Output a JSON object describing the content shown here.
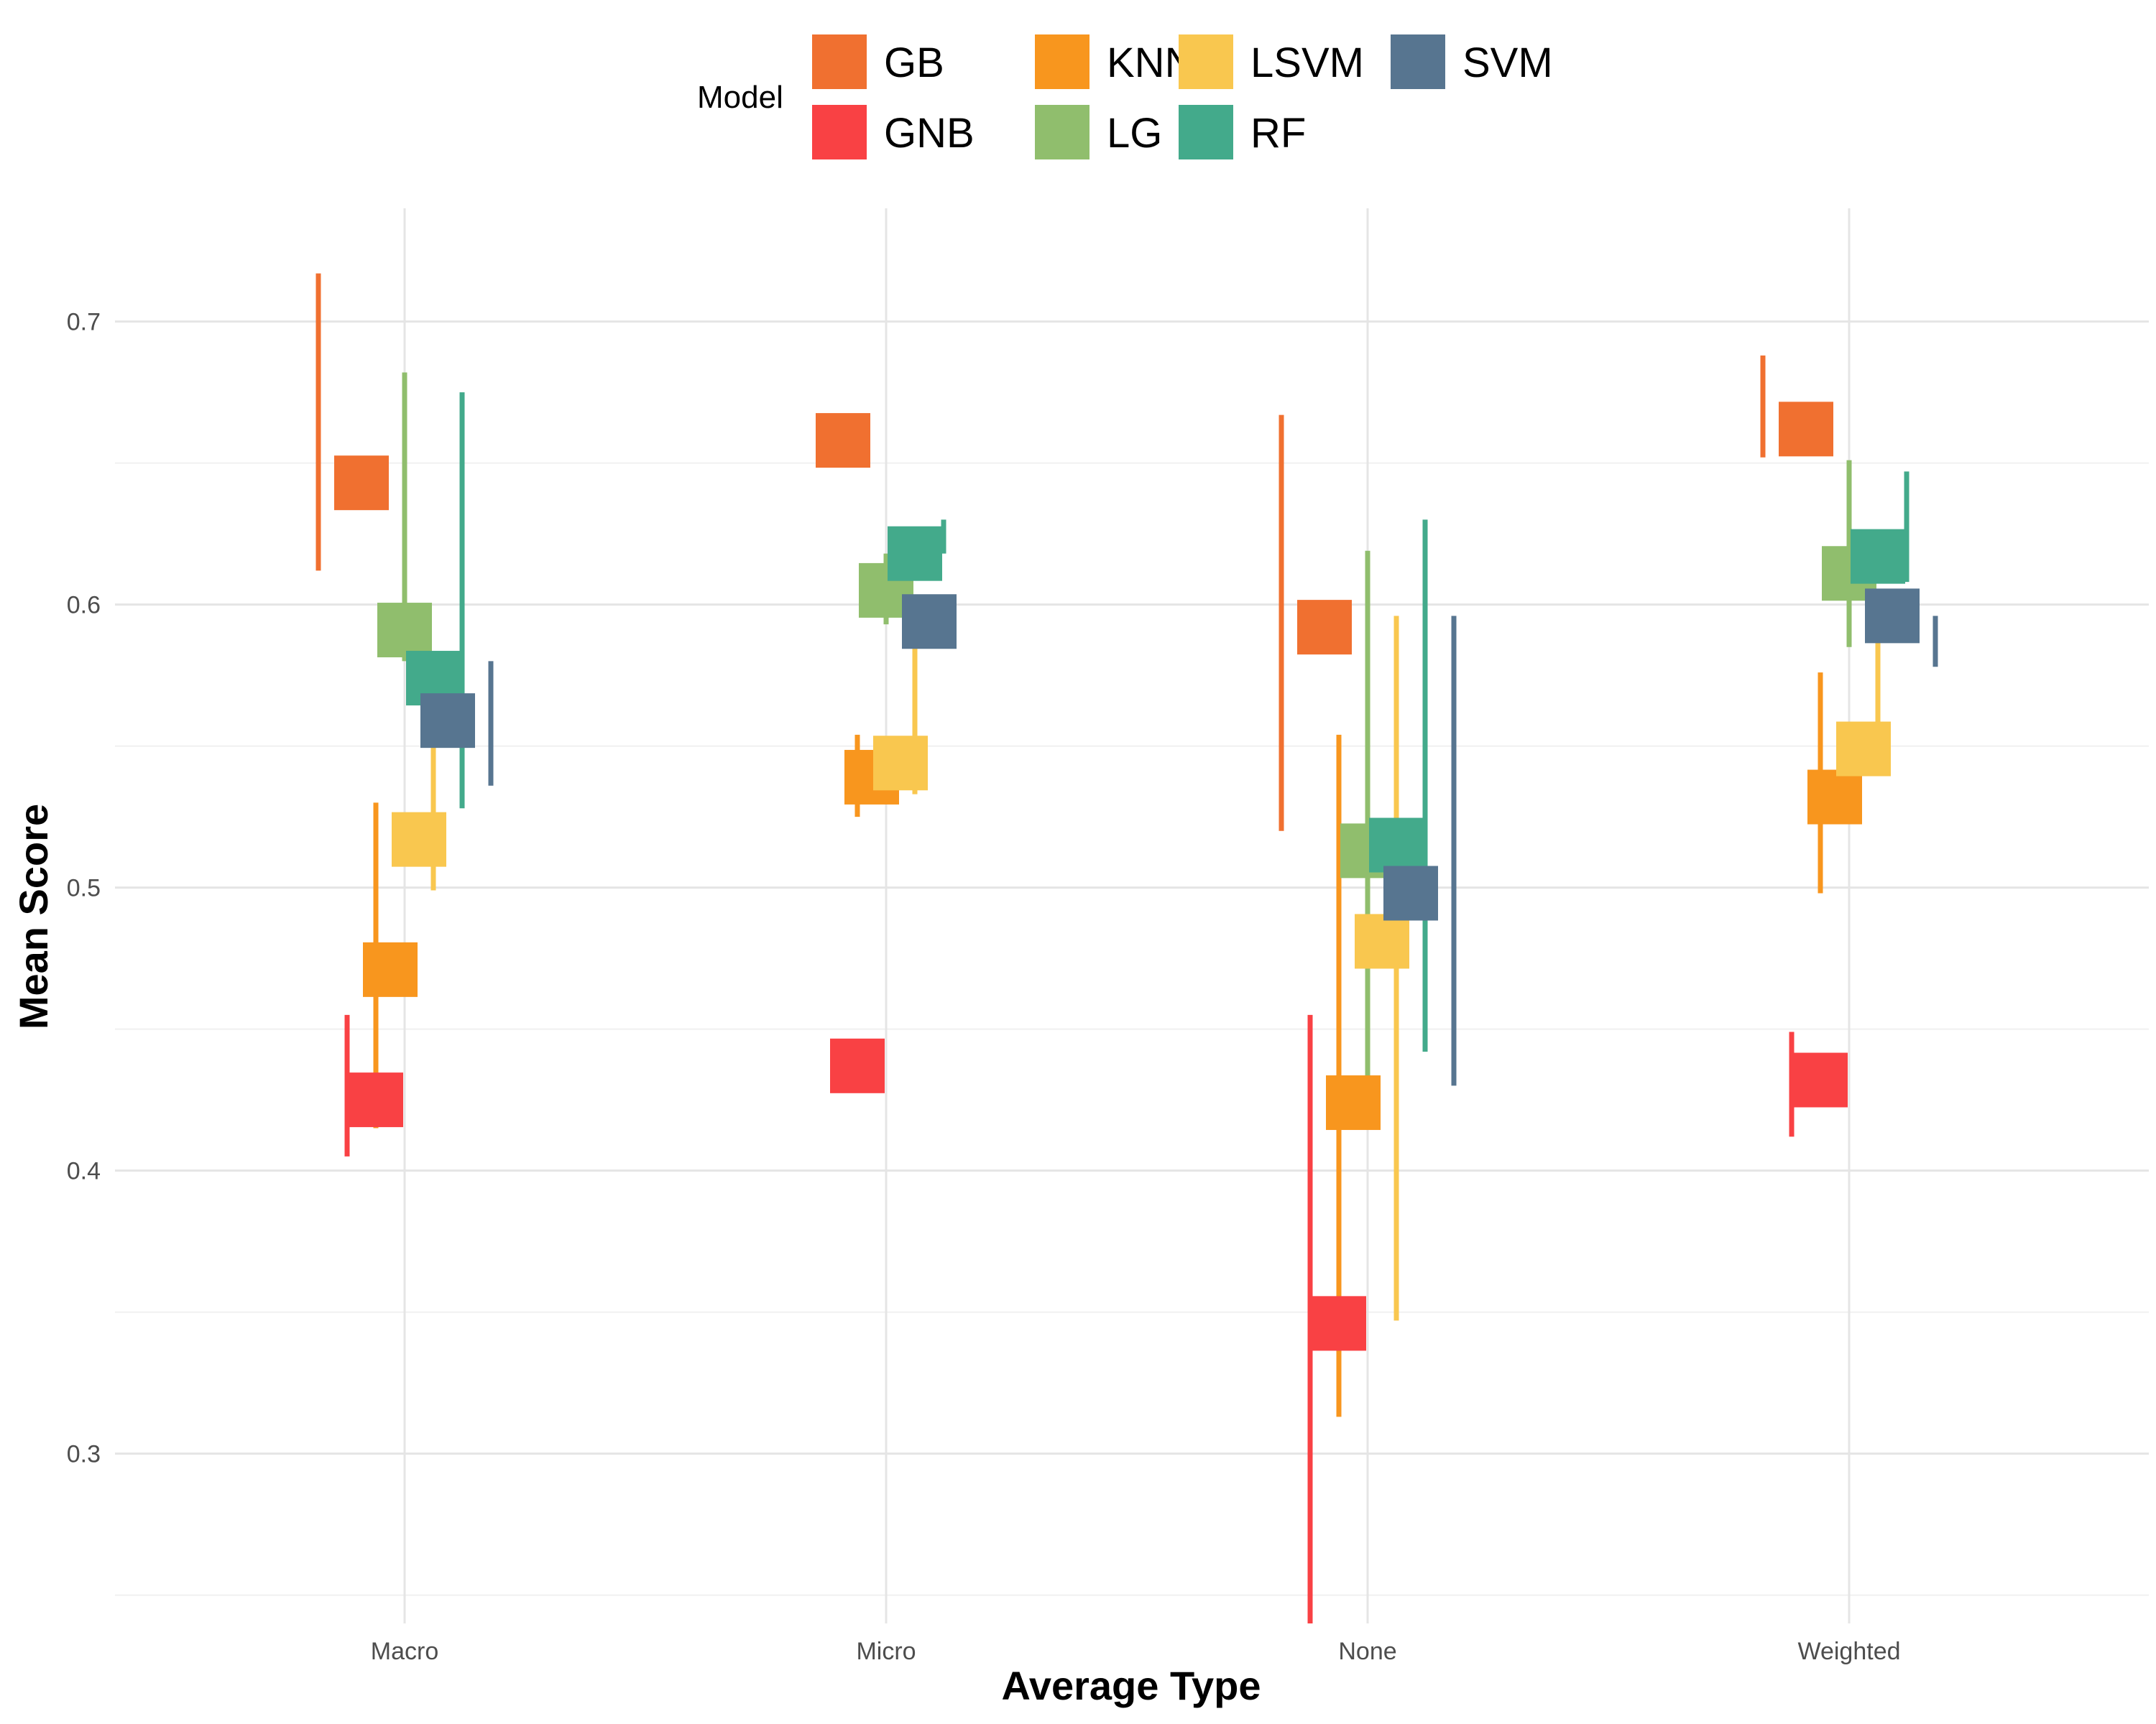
{
  "chart_data": {
    "type": "errorbar",
    "title": "",
    "xlabel": "Average Type",
    "ylabel": "Mean Score",
    "categories": [
      "Macro",
      "Micro",
      "None",
      "Weighted"
    ],
    "ylim": [
      0.24,
      0.74
    ],
    "yticks": [
      0.3,
      0.4,
      0.5,
      0.6,
      0.7
    ],
    "ytick_labels": [
      "0.3",
      "0.4",
      "0.5",
      "0.6",
      "0.7"
    ],
    "grid": true,
    "legend": {
      "title": "Model",
      "position": "top"
    },
    "series": [
      {
        "name": "GB",
        "color": "#f07030",
        "points": [
          {
            "x": "Macro",
            "mean": 0.643,
            "lower": 0.612,
            "upper": 0.717
          },
          {
            "x": "Micro",
            "mean": 0.658,
            "lower": 0.658,
            "upper": 0.658
          },
          {
            "x": "None",
            "mean": 0.592,
            "lower": 0.52,
            "upper": 0.667
          },
          {
            "x": "Weighted",
            "mean": 0.662,
            "lower": 0.652,
            "upper": 0.688
          }
        ]
      },
      {
        "name": "GNB",
        "color": "#f94144",
        "points": [
          {
            "x": "Macro",
            "mean": 0.425,
            "lower": 0.405,
            "upper": 0.455
          },
          {
            "x": "Micro",
            "mean": 0.437,
            "lower": 0.437,
            "upper": 0.437
          },
          {
            "x": "None",
            "mean": 0.346,
            "lower": 0.24,
            "upper": 0.455
          },
          {
            "x": "Weighted",
            "mean": 0.432,
            "lower": 0.412,
            "upper": 0.449
          }
        ]
      },
      {
        "name": "KNN",
        "color": "#f8961e",
        "points": [
          {
            "x": "Macro",
            "mean": 0.471,
            "lower": 0.415,
            "upper": 0.53
          },
          {
            "x": "Micro",
            "mean": 0.539,
            "lower": 0.525,
            "upper": 0.554
          },
          {
            "x": "None",
            "mean": 0.424,
            "lower": 0.313,
            "upper": 0.554
          },
          {
            "x": "Weighted",
            "mean": 0.532,
            "lower": 0.498,
            "upper": 0.576
          }
        ]
      },
      {
        "name": "LG",
        "color": "#90be6d",
        "points": [
          {
            "x": "Macro",
            "mean": 0.591,
            "lower": 0.58,
            "upper": 0.682
          },
          {
            "x": "Micro",
            "mean": 0.605,
            "lower": 0.593,
            "upper": 0.618
          },
          {
            "x": "None",
            "mean": 0.513,
            "lower": 0.419,
            "upper": 0.619
          },
          {
            "x": "Weighted",
            "mean": 0.611,
            "lower": 0.585,
            "upper": 0.651
          }
        ]
      },
      {
        "name": "LSVM",
        "color": "#f9c74f",
        "points": [
          {
            "x": "Macro",
            "mean": 0.517,
            "lower": 0.499,
            "upper": 0.58
          },
          {
            "x": "Micro",
            "mean": 0.544,
            "lower": 0.533,
            "upper": 0.596
          },
          {
            "x": "None",
            "mean": 0.481,
            "lower": 0.347,
            "upper": 0.596
          },
          {
            "x": "Weighted",
            "mean": 0.549,
            "lower": 0.54,
            "upper": 0.591
          }
        ]
      },
      {
        "name": "RF",
        "color": "#43aa8b",
        "points": [
          {
            "x": "Macro",
            "mean": 0.574,
            "lower": 0.528,
            "upper": 0.675
          },
          {
            "x": "Micro",
            "mean": 0.618,
            "lower": 0.618,
            "upper": 0.63
          },
          {
            "x": "None",
            "mean": 0.515,
            "lower": 0.442,
            "upper": 0.63
          },
          {
            "x": "Weighted",
            "mean": 0.617,
            "lower": 0.608,
            "upper": 0.647
          }
        ]
      },
      {
        "name": "SVM",
        "color": "#577590",
        "points": [
          {
            "x": "Macro",
            "mean": 0.559,
            "lower": 0.536,
            "upper": 0.58
          },
          {
            "x": "Micro",
            "mean": 0.594,
            "lower": 0.594,
            "upper": 0.594
          },
          {
            "x": "None",
            "mean": 0.498,
            "lower": 0.43,
            "upper": 0.596
          },
          {
            "x": "Weighted",
            "mean": 0.596,
            "lower": 0.578,
            "upper": 0.596
          }
        ]
      }
    ]
  }
}
